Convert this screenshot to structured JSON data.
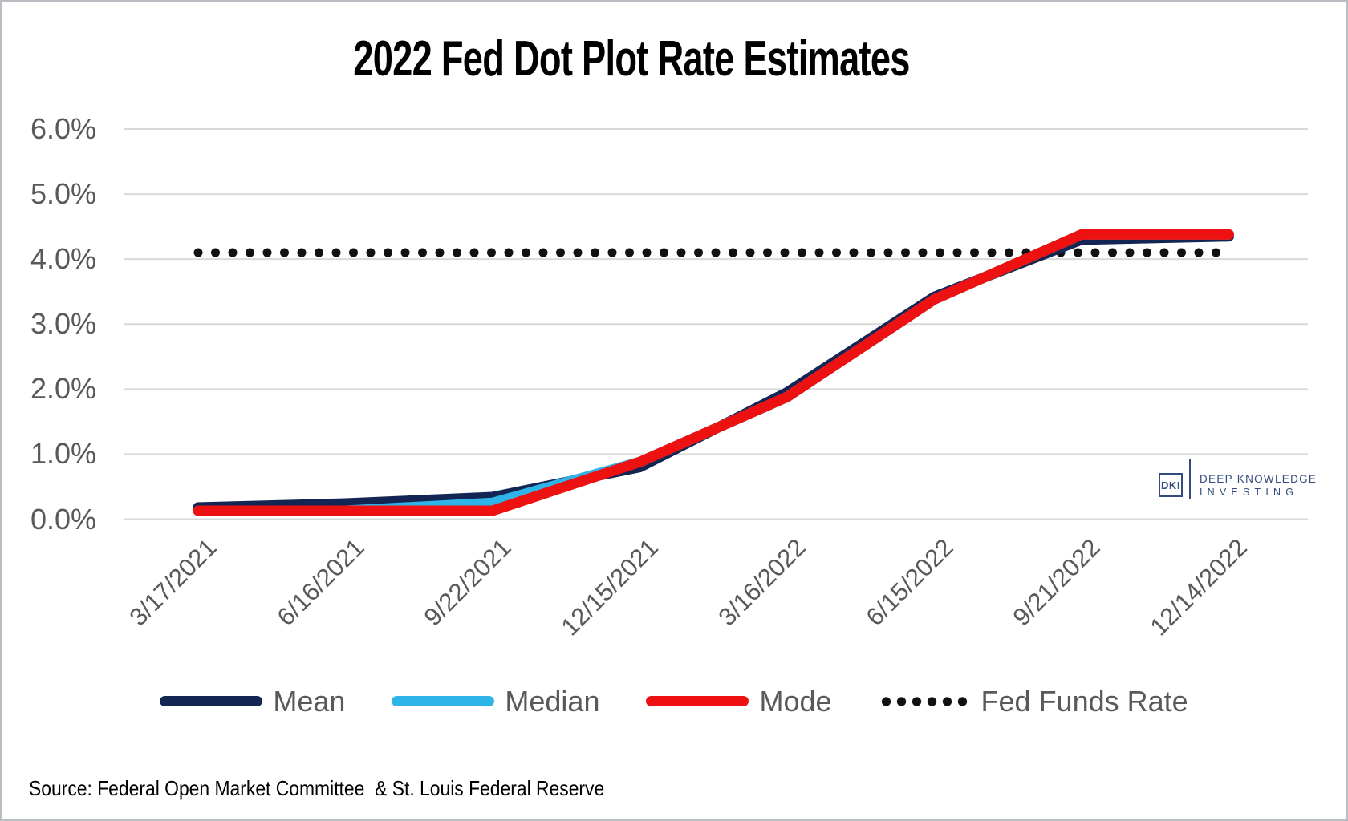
{
  "title": "2022 Fed Dot Plot Rate Estimates",
  "source_note": "Source: Federal Open Market Committee  & St. Louis Federal Reserve",
  "logo": {
    "mark": "DKI",
    "line1": "DEEP KNOWLEDGE",
    "line2": "INVESTING",
    "color": "#344b7d"
  },
  "chart_data": {
    "type": "line",
    "title": "2022 Fed Dot Plot Rate Estimates",
    "categories": [
      "3/17/2021",
      "6/16/2021",
      "9/22/2021",
      "12/15/2021",
      "3/16/2022",
      "6/15/2022",
      "9/21/2022",
      "12/14/2022"
    ],
    "series": [
      {
        "name": "Mean",
        "color": "#132653",
        "style": "solid",
        "values": [
          0.18,
          0.24,
          0.34,
          0.8,
          1.95,
          3.42,
          4.3,
          4.35
        ]
      },
      {
        "name": "Median",
        "color": "#2fb4e9",
        "style": "solid",
        "values": [
          0.13,
          0.13,
          0.25,
          0.88,
          1.88,
          3.38,
          4.38,
          4.38
        ]
      },
      {
        "name": "Mode",
        "color": "#ee1111",
        "style": "solid",
        "values": [
          0.13,
          0.13,
          0.13,
          0.88,
          1.88,
          3.38,
          4.38,
          4.38
        ]
      },
      {
        "name": "Fed Funds Rate",
        "color": "#111111",
        "style": "dotted",
        "values": [
          4.1,
          4.1,
          4.1,
          4.1,
          4.1,
          4.1,
          4.1,
          4.1
        ]
      }
    ],
    "xlabel": "",
    "ylabel": "",
    "ytick_labels": [
      "0.0%",
      "1.0%",
      "2.0%",
      "3.0%",
      "4.0%",
      "5.0%",
      "6.0%"
    ],
    "ylim": [
      0,
      6
    ],
    "grid": true,
    "grid_color": "#d9d9d9",
    "axis_text_color": "#595959",
    "legend_position": "bottom"
  }
}
